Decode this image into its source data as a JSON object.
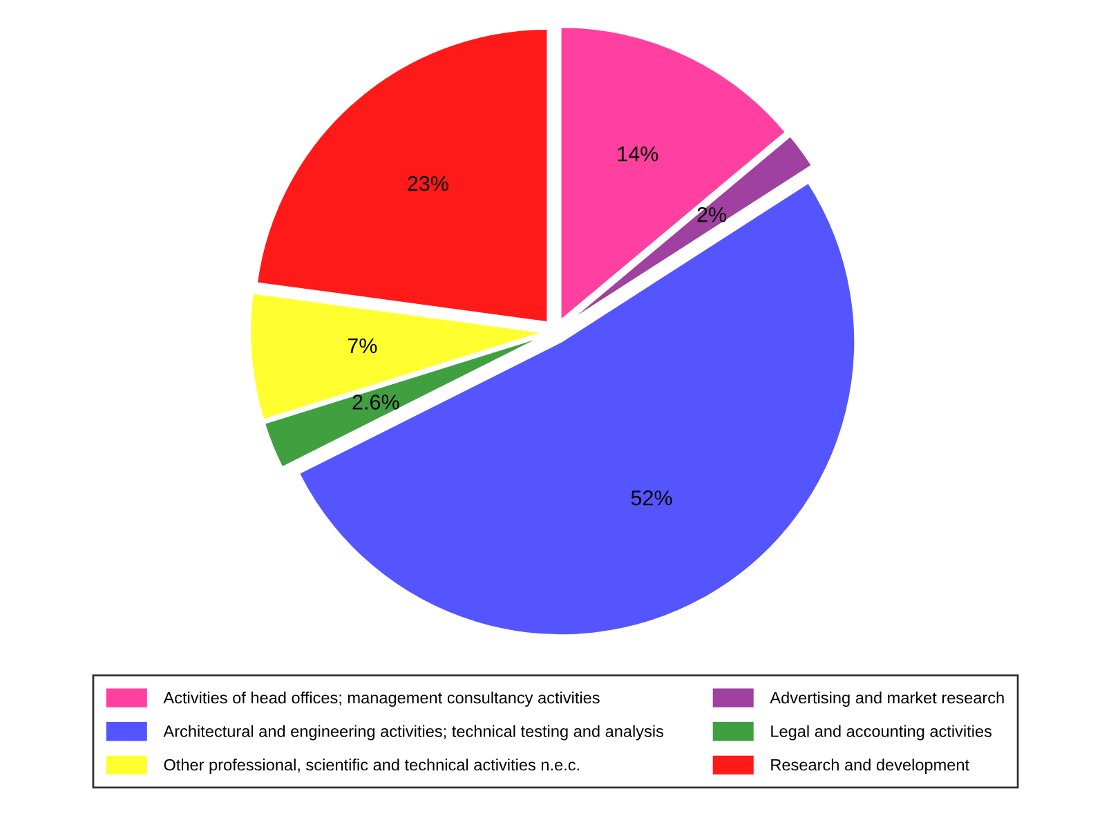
{
  "chart_data": {
    "type": "pie",
    "categories": [
      "Activities of head offices; management consultancy activities",
      "Advertising and market research",
      "Architectural and engineering activities; technical testing and analysis",
      "Legal and accounting activities",
      "Other professional, scientific and technical activities n.e.c.",
      "Research and development"
    ],
    "values": [
      14,
      2,
      52,
      2.6,
      7,
      23
    ],
    "colors": [
      "#ff40a0",
      "#a040a0",
      "#5555ff",
      "#40a040",
      "#ffff30",
      "#ff1a1a"
    ],
    "value_labels": [
      "14%",
      "2%",
      "52%",
      "2.6%",
      "7%",
      "23%"
    ],
    "legend": "bottom"
  }
}
